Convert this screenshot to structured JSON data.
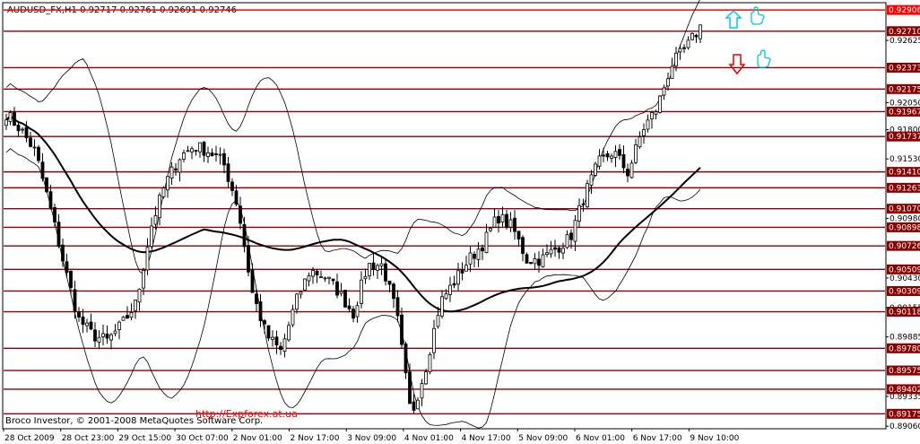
{
  "header": {
    "symbol": "AUDUSD_FX,H1",
    "ohlc": "0.92717 0.92761 0.92691 0.92746"
  },
  "footer": {
    "copyright": "Broco Investor, © 2001-2008 MetaQuotes Software Corp.",
    "url": "http://Expforex.at.ua"
  },
  "colors": {
    "background": "#ffffff",
    "candles": "#000000",
    "level_line": "#8b0000",
    "level_line_top": "#ff0000",
    "arrow_up": "#00c8e6",
    "arrow_down": "#e60000",
    "hand_icon": "#00c8e6"
  },
  "icons": [
    "arrow-up-icon",
    "hand-up-icon",
    "arrow-down-icon",
    "hand-down-icon"
  ],
  "chart_data": {
    "type": "line",
    "xlabel": "",
    "ylabel": "",
    "ylim": [
      0.89045,
      0.92965
    ],
    "x_tick_labels": [
      "28 Oct 2009",
      "28 Oct 23:00",
      "29 Oct 15:00",
      "30 Oct 07:00",
      "2 Nov 01:00",
      "2 Nov 17:00",
      "3 Nov 09:00",
      "4 Nov 01:00",
      "4 Nov 17:00",
      "5 Nov 09:00",
      "6 Nov 01:00",
      "6 Nov 17:00",
      "9 Nov 10:00"
    ],
    "y_tick_labels": [
      "0.92625",
      "0.92050",
      "0.91800",
      "0.91530",
      "0.90980",
      "0.90430",
      "0.90155",
      "0.89885",
      "0.89335",
      "0.89060"
    ],
    "levels": [
      "0.92906",
      "0.92710",
      "0.92373",
      "0.92175",
      "0.91967",
      "0.91737",
      "0.91410",
      "0.91263",
      "0.91070",
      "0.90898",
      "0.90726",
      "0.90509",
      "0.90309",
      "0.90118",
      "0.89780",
      "0.89575",
      "0.89402",
      "0.89175"
    ],
    "series": [
      {
        "values": [
          0.9195,
          0.918,
          0.916,
          0.911,
          0.9055,
          0.9005,
          0.899,
          0.8985,
          0.9,
          0.902,
          0.909,
          0.913,
          0.9155,
          0.9165,
          0.916,
          0.915,
          0.911,
          0.903,
          0.899,
          0.8975,
          0.902,
          0.905,
          0.9045,
          0.903,
          0.901,
          0.9055,
          0.9055,
          0.901,
          0.8915,
          0.896,
          0.902,
          0.904,
          0.906,
          0.9075,
          0.91,
          0.909,
          0.906,
          0.906,
          0.907,
          0.908,
          0.912,
          0.915,
          0.916,
          0.914,
          0.918,
          0.92,
          0.924,
          0.9255,
          0.9275
        ]
      }
    ]
  }
}
